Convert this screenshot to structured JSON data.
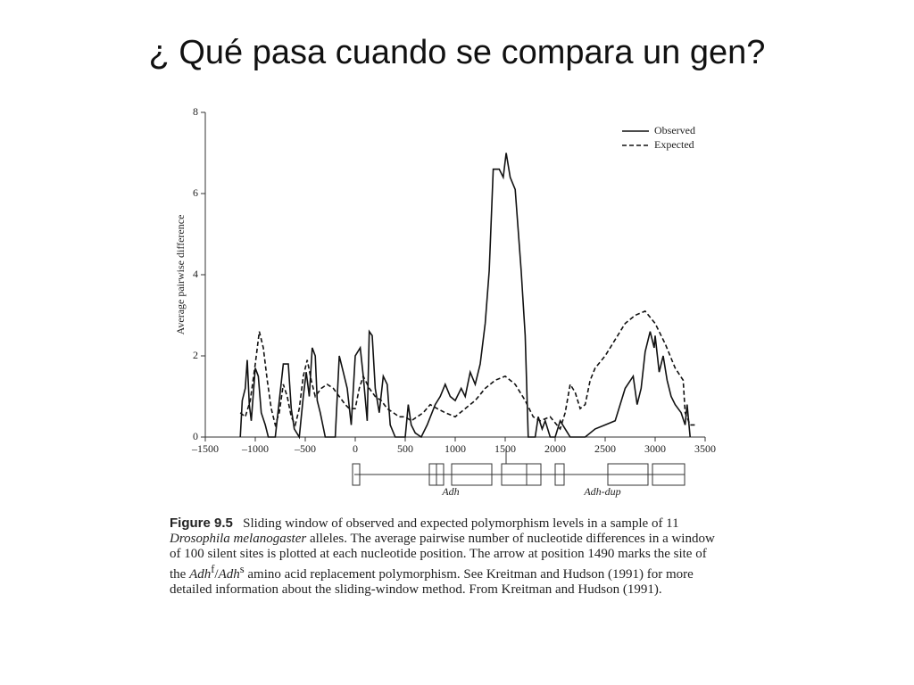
{
  "slide": {
    "title": "¿ Qué pasa cuando se compara un gen?"
  },
  "chart_data": {
    "type": "line",
    "ylabel": "Average pairwise difference",
    "xlim": [
      -1500,
      3500
    ],
    "ylim": [
      0,
      8
    ],
    "xticks": [
      {
        "value": -1500,
        "label": "–1500"
      },
      {
        "value": -1000,
        "label": "–1000"
      },
      {
        "value": -500,
        "label": "–500"
      },
      0,
      500,
      1000,
      1500,
      2000,
      2500,
      3000,
      3500
    ],
    "yticks": [
      0,
      2,
      4,
      6,
      8
    ],
    "legend": "upper right",
    "annotations": [
      "Adh",
      "Adh-dup"
    ],
    "series": [
      {
        "name": "Observed",
        "color": "#111111",
        "dash": "solid",
        "x": [
          -1150,
          -1130,
          -1100,
          -1080,
          -1060,
          -1040,
          -1000,
          -970,
          -940,
          -900,
          -870,
          -800,
          -760,
          -720,
          -670,
          -640,
          -610,
          -560,
          -520,
          -490,
          -460,
          -430,
          -400,
          -380,
          -350,
          -300,
          -200,
          -160,
          -120,
          -80,
          -40,
          0,
          50,
          80,
          120,
          140,
          170,
          200,
          240,
          280,
          320,
          350,
          400,
          500,
          530,
          560,
          600,
          660,
          720,
          800,
          850,
          900,
          950,
          1000,
          1060,
          1100,
          1150,
          1200,
          1250,
          1300,
          1340,
          1380,
          1440,
          1480,
          1510,
          1550,
          1600,
          1660,
          1700,
          1730,
          1800,
          1830,
          1870,
          1900,
          1950,
          2000,
          2050,
          2100,
          2150,
          2300,
          2400,
          2500,
          2600,
          2700,
          2780,
          2820,
          2860,
          2900,
          2950,
          2990,
          3000,
          3040,
          3080,
          3120,
          3160,
          3200,
          3260,
          3300,
          3320,
          3350
        ],
        "values": [
          0,
          0.9,
          1.2,
          1.9,
          0.8,
          0.4,
          1.7,
          1.5,
          0.6,
          0.3,
          0,
          0,
          0.9,
          1.8,
          1.8,
          0.7,
          0.2,
          0,
          1.0,
          1.6,
          1.0,
          2.2,
          2.0,
          0.9,
          0.6,
          0,
          0,
          2.0,
          1.6,
          1.2,
          0.3,
          2.0,
          2.2,
          1.5,
          0.4,
          2.6,
          2.5,
          1.2,
          0.6,
          1.5,
          1.3,
          0.3,
          0,
          0,
          0.8,
          0.3,
          0.1,
          0,
          0.3,
          0.8,
          1.0,
          1.3,
          1.0,
          0.9,
          1.2,
          1.0,
          1.6,
          1.3,
          1.8,
          2.8,
          4.1,
          6.6,
          6.6,
          6.4,
          7.0,
          6.4,
          6.1,
          4.1,
          2.5,
          0,
          0,
          0.5,
          0.2,
          0.4,
          0,
          0,
          0.4,
          0.2,
          0,
          0,
          0.2,
          0.3,
          0.4,
          1.2,
          1.5,
          0.8,
          1.2,
          2.1,
          2.6,
          2.2,
          2.5,
          1.6,
          2.0,
          1.4,
          1.0,
          0.8,
          0.6,
          0.3,
          0.8,
          0
        ]
      },
      {
        "name": "Expected",
        "color": "#111111",
        "dash": "dashed",
        "x": [
          -1150,
          -1100,
          -1050,
          -1000,
          -960,
          -920,
          -880,
          -840,
          -800,
          -760,
          -720,
          -680,
          -640,
          -600,
          -560,
          -520,
          -480,
          -440,
          -400,
          -340,
          -280,
          -220,
          -160,
          -100,
          -60,
          0,
          40,
          80,
          140,
          200,
          260,
          320,
          380,
          440,
          500,
          560,
          620,
          680,
          750,
          820,
          900,
          1000,
          1100,
          1200,
          1300,
          1400,
          1500,
          1600,
          1700,
          1780,
          1850,
          1950,
          2050,
          2100,
          2150,
          2200,
          2250,
          2300,
          2350,
          2400,
          2500,
          2600,
          2700,
          2800,
          2900,
          3000,
          3100,
          3200,
          3280,
          3300,
          3350,
          3400
        ],
        "values": [
          0.6,
          0.5,
          0.9,
          1.8,
          2.6,
          2.2,
          1.4,
          0.7,
          0.3,
          0.6,
          1.3,
          1.0,
          0.5,
          0.3,
          0.7,
          1.5,
          1.9,
          1.4,
          1.0,
          1.2,
          1.3,
          1.2,
          1.0,
          0.8,
          0.7,
          0.7,
          1.2,
          1.5,
          1.2,
          1.0,
          0.9,
          0.7,
          0.6,
          0.5,
          0.5,
          0.4,
          0.5,
          0.6,
          0.8,
          0.7,
          0.6,
          0.5,
          0.7,
          0.9,
          1.2,
          1.4,
          1.5,
          1.3,
          0.9,
          0.5,
          0.4,
          0.5,
          0.2,
          0.6,
          1.3,
          1.1,
          0.7,
          0.8,
          1.4,
          1.7,
          2.0,
          2.4,
          2.8,
          3.0,
          3.1,
          2.8,
          2.3,
          1.7,
          1.4,
          0.6,
          0.3,
          0.3
        ]
      }
    ]
  },
  "caption": {
    "label": "Figure 9.5",
    "parts": [
      "Sliding window of observed and expected polymorphism levels in a sample of 11 ",
      "Drosophila melanogaster",
      " alleles. The average pairwise number of nucleotide differences in a window of 100 silent sites is plotted at each nucleotide position. The arrow at position 1490 marks the site of the ",
      "Adh",
      "f",
      "/",
      "Adh",
      "s",
      " amino acid replacement polymorphism. See Kreitman and Hudson (1991) for more detailed information about the sliding-window method. From Kreitman and Hudson (1991)."
    ]
  }
}
